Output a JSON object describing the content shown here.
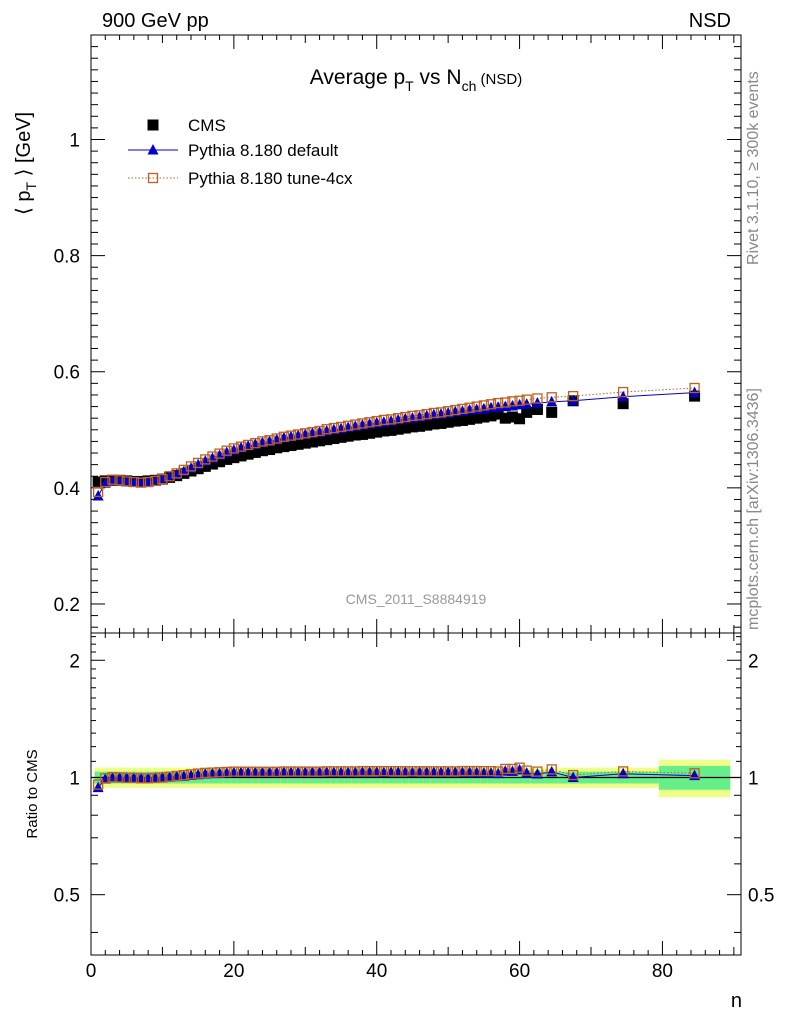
{
  "header": {
    "energy": "900 GeV pp",
    "process": "NSD"
  },
  "side_labels": {
    "rivet": "Rivet 3.1.10, ≥ 300k events",
    "source": "mcplots.cern.ch [arXiv:1306.3436]"
  },
  "watermark": "CMS_2011_S8884919",
  "chart_data": [
    {
      "type": "scatter",
      "title_main": "Average p",
      "title_sub1": "T",
      "title_mid": " vs N",
      "title_sub2": "ch",
      "title_tail": " (NSD)",
      "ylabel_pre": "⟨ p",
      "ylabel_sub": "T",
      "ylabel_post": " ⟩ [GeV]",
      "xlim": [
        0,
        91
      ],
      "ylim": [
        0.15,
        1.18
      ],
      "yticks": [
        "0.2",
        "0.4",
        "0.6",
        "0.8",
        "1"
      ],
      "legend_position": "top-left",
      "series": [
        {
          "name": "CMS",
          "marker": "filled-square",
          "color": "#000000",
          "x": [
            1,
            2,
            3,
            4,
            5,
            6,
            7,
            8,
            9,
            10,
            11,
            12,
            13,
            14,
            15,
            16,
            17,
            18,
            19,
            20,
            21,
            22,
            23,
            24,
            25,
            26,
            27,
            28,
            29,
            30,
            31,
            32,
            33,
            34,
            35,
            36,
            37,
            38,
            39,
            40,
            41,
            42,
            43,
            44,
            45,
            46,
            47,
            48,
            49,
            50,
            51,
            52,
            53,
            54,
            55,
            56,
            57,
            58,
            59,
            60,
            61,
            62.5,
            64.5,
            67.5,
            74.5,
            84.5
          ],
          "y": [
            0.41,
            0.412,
            0.413,
            0.413,
            0.412,
            0.411,
            0.411,
            0.412,
            0.413,
            0.415,
            0.418,
            0.421,
            0.425,
            0.429,
            0.433,
            0.437,
            0.441,
            0.445,
            0.449,
            0.452,
            0.455,
            0.458,
            0.461,
            0.464,
            0.466,
            0.469,
            0.471,
            0.473,
            0.475,
            0.477,
            0.479,
            0.481,
            0.483,
            0.485,
            0.487,
            0.489,
            0.491,
            0.492,
            0.494,
            0.496,
            0.498,
            0.499,
            0.501,
            0.503,
            0.505,
            0.506,
            0.508,
            0.51,
            0.511,
            0.513,
            0.515,
            0.516,
            0.518,
            0.52,
            0.522,
            0.524,
            0.527,
            0.52,
            0.522,
            0.519,
            0.53,
            0.535,
            0.53,
            0.55,
            0.545,
            0.558
          ]
        },
        {
          "name": "Pythia 8.180 default",
          "marker": "filled-triangle",
          "color": "#0000cc",
          "x": [
            1,
            2,
            3,
            4,
            5,
            6,
            7,
            8,
            9,
            10,
            11,
            12,
            13,
            14,
            15,
            16,
            17,
            18,
            19,
            20,
            21,
            22,
            23,
            24,
            25,
            26,
            27,
            28,
            29,
            30,
            31,
            32,
            33,
            34,
            35,
            36,
            37,
            38,
            39,
            40,
            41,
            42,
            43,
            44,
            45,
            46,
            47,
            48,
            49,
            50,
            51,
            52,
            53,
            54,
            55,
            56,
            57,
            58,
            59,
            60,
            61,
            62.5,
            64.5,
            67.5,
            74.5,
            84.5
          ],
          "y": [
            0.386,
            0.408,
            0.412,
            0.412,
            0.411,
            0.41,
            0.409,
            0.41,
            0.412,
            0.415,
            0.419,
            0.423,
            0.428,
            0.434,
            0.44,
            0.446,
            0.451,
            0.456,
            0.461,
            0.465,
            0.469,
            0.472,
            0.475,
            0.478,
            0.48,
            0.483,
            0.486,
            0.488,
            0.49,
            0.492,
            0.494,
            0.496,
            0.498,
            0.5,
            0.502,
            0.504,
            0.506,
            0.508,
            0.51,
            0.512,
            0.513,
            0.515,
            0.517,
            0.519,
            0.52,
            0.522,
            0.524,
            0.526,
            0.527,
            0.529,
            0.531,
            0.532,
            0.534,
            0.535,
            0.536,
            0.538,
            0.539,
            0.54,
            0.541,
            0.543,
            0.544,
            0.546,
            0.548,
            0.55,
            0.557,
            0.564
          ]
        },
        {
          "name": "Pythia 8.180 tune-4cx",
          "marker": "open-square",
          "color": "#c06020",
          "x": [
            1,
            2,
            3,
            4,
            5,
            6,
            7,
            8,
            9,
            10,
            11,
            12,
            13,
            14,
            15,
            16,
            17,
            18,
            19,
            20,
            21,
            22,
            23,
            24,
            25,
            26,
            27,
            28,
            29,
            30,
            31,
            32,
            33,
            34,
            35,
            36,
            37,
            38,
            39,
            40,
            41,
            42,
            43,
            44,
            45,
            46,
            47,
            48,
            49,
            50,
            51,
            52,
            53,
            54,
            55,
            56,
            57,
            58,
            59,
            60,
            61,
            62.5,
            64.5,
            67.5,
            74.5,
            84.5
          ],
          "y": [
            0.393,
            0.41,
            0.414,
            0.413,
            0.411,
            0.41,
            0.409,
            0.41,
            0.412,
            0.415,
            0.42,
            0.425,
            0.431,
            0.437,
            0.443,
            0.449,
            0.454,
            0.459,
            0.464,
            0.468,
            0.471,
            0.474,
            0.477,
            0.48,
            0.482,
            0.485,
            0.488,
            0.49,
            0.492,
            0.494,
            0.496,
            0.498,
            0.501,
            0.503,
            0.505,
            0.507,
            0.509,
            0.511,
            0.513,
            0.515,
            0.517,
            0.518,
            0.52,
            0.522,
            0.524,
            0.525,
            0.527,
            0.529,
            0.53,
            0.532,
            0.534,
            0.536,
            0.538,
            0.54,
            0.542,
            0.544,
            0.546,
            0.547,
            0.549,
            0.55,
            0.552,
            0.554,
            0.556,
            0.558,
            0.565,
            0.572
          ]
        }
      ]
    },
    {
      "type": "scatter",
      "ylabel": "Ratio to CMS",
      "xlabel": "n",
      "xlim": [
        0,
        91
      ],
      "ylim": [
        0.35,
        2.35
      ],
      "ylog": true,
      "xticks": [
        "0",
        "20",
        "40",
        "60",
        "80"
      ],
      "yticks": [
        "0.5",
        "1",
        "2"
      ],
      "reference_line": 1,
      "band_inner_color": "#66ee88",
      "band_outer_color": "#eeff88",
      "band_x_edges": [
        0.5,
        1.5,
        2.5,
        3.5,
        4.5,
        5.5,
        6.5,
        7.5,
        8.5,
        9.5,
        10.5,
        11.5,
        12.5,
        13.5,
        14.5,
        15.5,
        16.5,
        17.5,
        18.5,
        19.5,
        20.5,
        21.5,
        22.5,
        23.5,
        24.5,
        25.5,
        26.5,
        27.5,
        28.5,
        29.5,
        30.5,
        31.5,
        32.5,
        33.5,
        34.5,
        35.5,
        36.5,
        37.5,
        38.5,
        39.5,
        40.5,
        41.5,
        42.5,
        43.5,
        44.5,
        45.5,
        46.5,
        47.5,
        48.5,
        49.5,
        50.5,
        51.5,
        52.5,
        53.5,
        54.5,
        55.5,
        56.5,
        57.5,
        58.5,
        59.5,
        60.5,
        61.5,
        63.5,
        65.5,
        69.5,
        79.5,
        89.5
      ],
      "band_inner": [
        0.035,
        0.035,
        0.035,
        0.035,
        0.035,
        0.035,
        0.035,
        0.035,
        0.035,
        0.035,
        0.035,
        0.035,
        0.035,
        0.035,
        0.035,
        0.035,
        0.035,
        0.035,
        0.035,
        0.035,
        0.035,
        0.035,
        0.035,
        0.035,
        0.035,
        0.035,
        0.035,
        0.035,
        0.035,
        0.035,
        0.035,
        0.035,
        0.035,
        0.035,
        0.035,
        0.035,
        0.035,
        0.035,
        0.035,
        0.035,
        0.035,
        0.035,
        0.035,
        0.035,
        0.035,
        0.035,
        0.035,
        0.035,
        0.035,
        0.035,
        0.035,
        0.035,
        0.035,
        0.035,
        0.035,
        0.035,
        0.035,
        0.035,
        0.035,
        0.035,
        0.035,
        0.035,
        0.035,
        0.035,
        0.035,
        0.07
      ],
      "band_outer": [
        0.06,
        0.06,
        0.06,
        0.06,
        0.06,
        0.06,
        0.06,
        0.06,
        0.06,
        0.06,
        0.06,
        0.06,
        0.06,
        0.06,
        0.06,
        0.06,
        0.06,
        0.06,
        0.06,
        0.06,
        0.06,
        0.06,
        0.06,
        0.06,
        0.06,
        0.06,
        0.06,
        0.06,
        0.06,
        0.06,
        0.06,
        0.06,
        0.06,
        0.06,
        0.06,
        0.06,
        0.06,
        0.06,
        0.06,
        0.06,
        0.06,
        0.06,
        0.06,
        0.06,
        0.06,
        0.06,
        0.06,
        0.06,
        0.06,
        0.06,
        0.06,
        0.06,
        0.06,
        0.06,
        0.06,
        0.06,
        0.06,
        0.06,
        0.06,
        0.06,
        0.06,
        0.06,
        0.06,
        0.06,
        0.06,
        0.11
      ]
    }
  ]
}
